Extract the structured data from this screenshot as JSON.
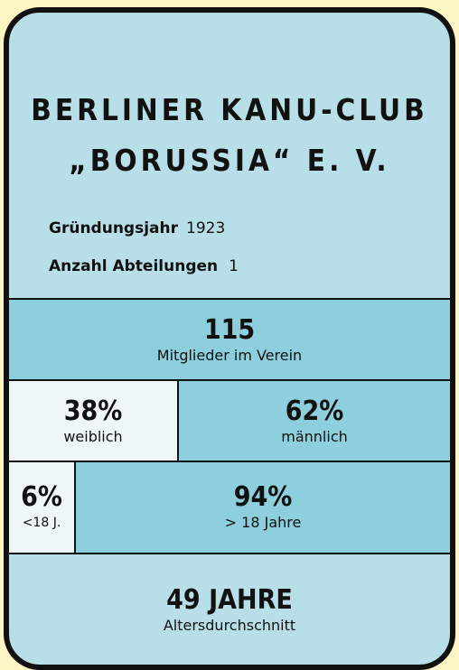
{
  "card": {
    "title_lines": [
      "BERLINER KANU-CLUB",
      "„BORUSSIA“ E. V."
    ],
    "facts": [
      {
        "label": "Gründungsjahr",
        "value": "1923"
      },
      {
        "label": "Anzahl Abteilungen",
        "value": "1"
      }
    ],
    "members": {
      "value": "115",
      "label": "Mitglieder im Verein"
    },
    "gender": [
      {
        "value": "38%",
        "label": "weiblich"
      },
      {
        "value": "62%",
        "label": "männlich"
      }
    ],
    "age_groups": [
      {
        "value": "6%",
        "label": "<18 J."
      },
      {
        "value": "94%",
        "label": "> 18 Jahre"
      }
    ],
    "average_age": {
      "value": "49 JAHRE",
      "label": "Altersdurchschnitt"
    }
  }
}
